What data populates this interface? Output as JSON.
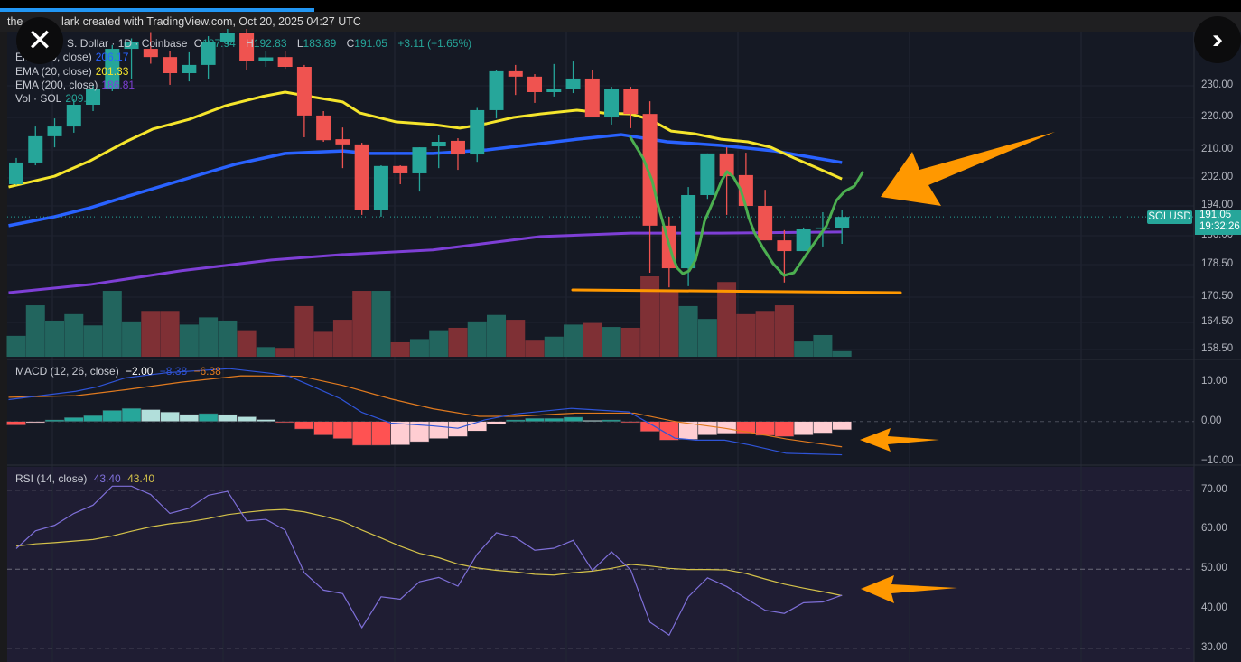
{
  "header": {
    "text_left": "the",
    "text_right": "lark created with TradingView.com, Oct 20, 2025 04:27 UTC"
  },
  "buttons": {
    "close_icon": "close-x-icon",
    "expand_icon": "double-chevron-right-icon"
  },
  "legend": {
    "symbol_prefix": "S",
    "symbol": "S. Dollar · 1D · Coinbase",
    "ohlc": [
      {
        "label": "O",
        "value": "187.94"
      },
      {
        "label": "H",
        "value": "192.83"
      },
      {
        "label": "L",
        "value": "183.89"
      },
      {
        "label": "C",
        "value": "191.05"
      }
    ],
    "change": "+3.11 (+1.65%)",
    "ema50": {
      "label": "EMA (50, close)",
      "value": "206.17"
    },
    "ema20": {
      "label": "EMA (20, close)",
      "value": "201.33"
    },
    "ema200": {
      "label": "EMA (200, close)",
      "value": "186.81"
    },
    "volume": {
      "label": "Vol · SOL",
      "value": "209.9"
    }
  },
  "price_tag": {
    "symbol": "SOLUSD",
    "price": "191.05",
    "countdown": "19:32:26"
  },
  "colors": {
    "up": "#26a69a",
    "down": "#ef5350",
    "ema20": "#f5e52c",
    "ema50": "#2962ff",
    "ema200": "#7e3fd6",
    "macd": "#2f54d8",
    "signal": "#e07a1f",
    "rsi": "#7e6fd8",
    "rsi_ma": "#d4c24a",
    "annotation_orange": "#ff9800",
    "annotation_green": "#4caf50"
  },
  "chart_data": [
    {
      "type": "candlestick",
      "title": "",
      "x_unit": "bar (1D)",
      "price_ticks": [
        "230.00",
        "220.00",
        "210.00",
        "202.00",
        "194.00",
        "186.00",
        "178.50",
        "170.50",
        "164.50",
        "158.50"
      ],
      "ohlc": [
        [
          200.2,
          207.7,
          200.0,
          206.4
        ],
        [
          206.4,
          217.2,
          205.6,
          214.2
        ],
        [
          214.2,
          219.7,
          210.8,
          217.2
        ],
        [
          217.2,
          225.7,
          215.3,
          224.0
        ],
        [
          224.0,
          230.0,
          222.0,
          228.9
        ],
        [
          228.9,
          242.9,
          228.3,
          241.7
        ],
        [
          241.7,
          245.0,
          232.0,
          244.0
        ],
        [
          241.7,
          247.0,
          237.0,
          239.1
        ],
        [
          239.1,
          241.0,
          230.3,
          234.0
        ],
        [
          234.0,
          240.6,
          231.4,
          236.6
        ],
        [
          236.6,
          245.7,
          232.0,
          244.0
        ],
        [
          244.0,
          248.0,
          243.0,
          246.6
        ],
        [
          246.6,
          248.0,
          234.9,
          238.0
        ],
        [
          238.0,
          241.0,
          236.0,
          239.0
        ],
        [
          239.1,
          241.0,
          235.4,
          236.0
        ],
        [
          236.0,
          236.6,
          213.9,
          220.6
        ],
        [
          220.6,
          222.0,
          212.5,
          213.0
        ],
        [
          213.3,
          216.9,
          204.8,
          211.7
        ],
        [
          211.7,
          212.2,
          191.6,
          192.8
        ],
        [
          192.8,
          205.6,
          191.1,
          205.4
        ],
        [
          205.4,
          205.6,
          200.2,
          203.3
        ],
        [
          203.3,
          210.8,
          198.1,
          210.8
        ],
        [
          211.1,
          214.7,
          204.8,
          212.5
        ],
        [
          212.8,
          213.6,
          204.3,
          208.7
        ],
        [
          208.7,
          223.0,
          206.6,
          222.3
        ],
        [
          222.3,
          235.0,
          219.7,
          234.6
        ],
        [
          234.6,
          236.6,
          227.1,
          232.9
        ],
        [
          232.9,
          233.7,
          224.6,
          228.0
        ],
        [
          228.0,
          236.9,
          226.6,
          229.0
        ],
        [
          228.9,
          237.7,
          227.7,
          232.3
        ],
        [
          232.3,
          235.0,
          220.0,
          220.0
        ],
        [
          220.0,
          229.7,
          217.8,
          229.1
        ],
        [
          229.1,
          229.7,
          216.7,
          221.1
        ],
        [
          221.1,
          225.1,
          176.5,
          188.7
        ],
        [
          188.7,
          191.1,
          172.9,
          177.6
        ],
        [
          177.6,
          199.4,
          173.2,
          197.1
        ],
        [
          197.1,
          209.0,
          196.0,
          209.0
        ],
        [
          209.0,
          210.8,
          191.6,
          202.5
        ],
        [
          202.8,
          209.2,
          194.0,
          194.0
        ],
        [
          194.0,
          198.6,
          184.8,
          184.8
        ],
        [
          184.8,
          187.5,
          174.1,
          182.0
        ],
        [
          182.0,
          188.2,
          182.0,
          187.7
        ],
        [
          187.9,
          192.3,
          183.2,
          188.2
        ],
        [
          187.94,
          192.83,
          183.89,
          191.05
        ]
      ],
      "volume_relative_pct": [
        26,
        64,
        45,
        53,
        39,
        82,
        44,
        57,
        57,
        40,
        49,
        45,
        33,
        12,
        11,
        63,
        31,
        46,
        82,
        82,
        18,
        22,
        33,
        36,
        44,
        52,
        46,
        20,
        25,
        40,
        42,
        37,
        36,
        100,
        81,
        63,
        47,
        93,
        53,
        57,
        64,
        19,
        27,
        7
      ],
      "ema20": [
        [
          -0.4,
          199.4
        ],
        [
          2,
          202.5
        ],
        [
          3.85,
          206.9
        ],
        [
          5.7,
          212.5
        ],
        [
          7.1,
          216.4
        ],
        [
          9,
          219.4
        ],
        [
          10.9,
          223.7
        ],
        [
          12.8,
          226.6
        ],
        [
          14,
          228.0
        ],
        [
          15.3,
          226.6
        ],
        [
          17,
          224.9
        ],
        [
          17.9,
          221.4
        ],
        [
          19.8,
          218.6
        ],
        [
          21.7,
          217.8
        ],
        [
          23.1,
          216.7
        ],
        [
          24.5,
          218.1
        ],
        [
          25.9,
          220.0
        ],
        [
          27.3,
          221.1
        ],
        [
          29.2,
          222.3
        ],
        [
          30.6,
          221.4
        ],
        [
          32,
          221.1
        ],
        [
          33,
          219.4
        ],
        [
          34.1,
          215.8
        ],
        [
          35.3,
          215.0
        ],
        [
          36.7,
          213.3
        ],
        [
          38.1,
          212.5
        ],
        [
          39.3,
          210.8
        ],
        [
          40.5,
          207.7
        ],
        [
          41.6,
          205.1
        ],
        [
          43,
          201.7
        ]
      ],
      "ema50": [
        [
          -0.4,
          188.7
        ],
        [
          2,
          191.1
        ],
        [
          3.85,
          193.5
        ],
        [
          5.7,
          196.6
        ],
        [
          9,
          202.0
        ],
        [
          11.4,
          205.9
        ],
        [
          14,
          209.0
        ],
        [
          17,
          209.7
        ],
        [
          18.4,
          209.0
        ],
        [
          21.7,
          209.0
        ],
        [
          24.5,
          210.0
        ],
        [
          29.2,
          213.3
        ],
        [
          31.5,
          214.7
        ],
        [
          33.9,
          212.5
        ],
        [
          36.7,
          211.4
        ],
        [
          39.5,
          209.7
        ],
        [
          41.4,
          207.9
        ],
        [
          43,
          206.4
        ]
      ],
      "ema200": [
        [
          -0.4,
          171.6
        ],
        [
          3.85,
          173.6
        ],
        [
          8.6,
          177.0
        ],
        [
          13.3,
          179.7
        ],
        [
          17,
          181.1
        ],
        [
          21.7,
          182.3
        ],
        [
          27.3,
          185.8
        ],
        [
          32,
          186.7
        ],
        [
          36.7,
          186.7
        ],
        [
          43,
          187.0
        ]
      ]
    },
    {
      "type": "macd",
      "title": "MACD (12, 26, close)",
      "values": {
        "histogram": "−2.00",
        "macd": "−8.38",
        "signal": "−6.38"
      },
      "y_ticks": [
        "10.00",
        "0.00",
        "−10.00"
      ],
      "histogram": [
        -0.9,
        -0.3,
        0.4,
        1.0,
        1.5,
        2.8,
        3.3,
        3.0,
        2.4,
        1.8,
        2.0,
        1.75,
        1.2,
        0.5,
        -0.15,
        -1.9,
        -3.4,
        -4.3,
        -6.0,
        -6.0,
        -5.9,
        -5.1,
        -4.3,
        -3.8,
        -2.4,
        -0.6,
        0.4,
        0.8,
        0.8,
        1.1,
        0.3,
        0.4,
        -0.1,
        -2.5,
        -4.7,
        -4.5,
        -3.4,
        -3.0,
        -3.0,
        -3.5,
        -3.8,
        -3.4,
        -2.9,
        -2.1
      ],
      "macd_line": [
        [
          -0.4,
          5.5
        ],
        [
          3.1,
          7.6
        ],
        [
          4.2,
          8.7
        ],
        [
          5.7,
          11.0
        ],
        [
          7.9,
          12.3
        ],
        [
          11.1,
          13.3
        ],
        [
          13.3,
          12.1
        ],
        [
          14.2,
          11.4
        ],
        [
          15.5,
          8.7
        ],
        [
          16.9,
          5.7
        ],
        [
          18,
          2.3
        ],
        [
          19.5,
          -0.4
        ],
        [
          21.7,
          -1.1
        ],
        [
          23,
          -1.7
        ],
        [
          24.4,
          0.4
        ],
        [
          26,
          1.9
        ],
        [
          28.9,
          3.3
        ],
        [
          31.9,
          2.4
        ],
        [
          33.2,
          -1.1
        ],
        [
          34.3,
          -4.2
        ],
        [
          35.4,
          -4.7
        ],
        [
          36.9,
          -4.7
        ],
        [
          38.2,
          -5.9
        ],
        [
          40.1,
          -8.0
        ],
        [
          43,
          -8.38
        ]
      ],
      "signal_line": [
        [
          -0.4,
          6.1
        ],
        [
          3.1,
          6.5
        ],
        [
          5.7,
          8.0
        ],
        [
          8.6,
          9.9
        ],
        [
          11.7,
          11.5
        ],
        [
          14.8,
          11.4
        ],
        [
          17,
          9.1
        ],
        [
          19.5,
          5.7
        ],
        [
          21.7,
          3.2
        ],
        [
          24.1,
          1.3
        ],
        [
          26,
          1.3
        ],
        [
          29.1,
          2.1
        ],
        [
          32.2,
          2.1
        ],
        [
          34.3,
          0.0
        ],
        [
          36.9,
          -1.7
        ],
        [
          38.5,
          -3.0
        ],
        [
          40.1,
          -4.4
        ],
        [
          43,
          -6.38
        ]
      ],
      "ylim": [
        -10,
        10
      ]
    },
    {
      "type": "line",
      "title": "RSI (14, close)",
      "values": {
        "rsi": "43.40",
        "rsi_ma": "43.40"
      },
      "y_ticks": [
        "70.00",
        "60.00",
        "50.00",
        "40.00",
        "30.00"
      ],
      "rsi": [
        55.2,
        59.7,
        61.1,
        64.1,
        66.2,
        71.0,
        71.0,
        68.9,
        64.1,
        65.4,
        68.7,
        69.7,
        62.2,
        62.6,
        59.9,
        49.1,
        44.7,
        43.8,
        35.2,
        43.0,
        42.4,
        46.8,
        47.9,
        45.7,
        53.8,
        59.2,
        58.0,
        54.8,
        55.3,
        57.3,
        49.7,
        54.4,
        49.8,
        36.6,
        33.3,
        43.0,
        47.8,
        45.6,
        42.6,
        39.6,
        38.8,
        41.5,
        41.7,
        43.4
      ],
      "rsi_ma": [
        55.8,
        56.4,
        56.7,
        57.1,
        57.5,
        58.4,
        59.6,
        60.7,
        61.5,
        62.0,
        62.8,
        63.8,
        64.4,
        64.9,
        65.1,
        64.5,
        63.4,
        62.1,
        59.9,
        57.9,
        55.8,
        54.0,
        52.9,
        51.3,
        50.3,
        49.7,
        49.3,
        48.7,
        48.5,
        49.1,
        49.5,
        50.2,
        51.2,
        50.8,
        50.2,
        49.9,
        49.9,
        49.8,
        48.9,
        47.5,
        46.2,
        45.2,
        44.3,
        43.3
      ],
      "bands": [
        70,
        50,
        30
      ],
      "ylim": [
        30,
        70
      ]
    }
  ]
}
